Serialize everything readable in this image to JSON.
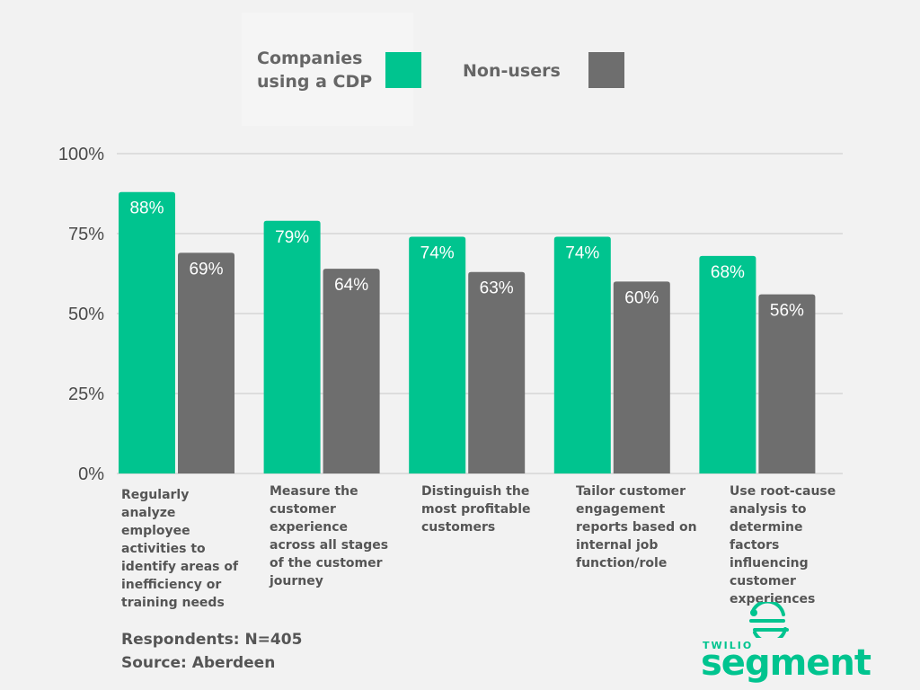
{
  "legend": {
    "cdp_label": "Companies using a CDP",
    "non_label": "Non-users"
  },
  "colors": {
    "cdp": "#00c48f",
    "non": "#6e6e6e",
    "grid": "#c8c8c8",
    "logo": "#00c48f"
  },
  "chart_data": {
    "type": "bar",
    "categories": [
      "Regularly analyze employee activities to identify areas of inefficiency or training needs",
      "Measure the customer experience across all stages of the customer journey",
      "Distinguish the most profitable customers",
      "Tailor customer engagement reports based on internal job function/role",
      "Use root-cause analysis to determine factors influencing customer experiences"
    ],
    "series": [
      {
        "name": "Companies using a CDP",
        "values": [
          88,
          79,
          74,
          74,
          68
        ]
      },
      {
        "name": "Non-users",
        "values": [
          69,
          64,
          63,
          60,
          56
        ]
      }
    ],
    "data_labels": [
      [
        "88%",
        "79%",
        "74%",
        "74%",
        "68%"
      ],
      [
        "69%",
        "64%",
        "63%",
        "60%",
        "56%"
      ]
    ],
    "yticks": [
      "0%",
      "25%",
      "50%",
      "75%",
      "100%"
    ],
    "ylim": [
      0,
      100
    ],
    "grid": true,
    "legend_position": "top"
  },
  "footnotes": {
    "respondents": "Respondents: N=405",
    "source": "Source: Aberdeen"
  },
  "logo": {
    "small": "TWILIO",
    "big": "segment"
  }
}
